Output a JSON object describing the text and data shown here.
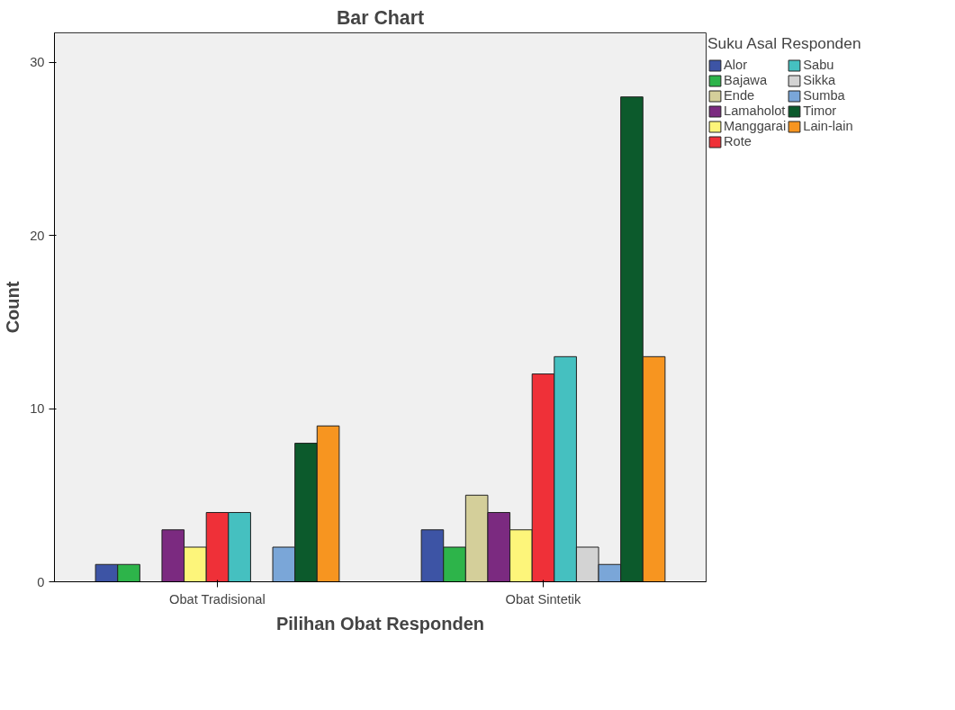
{
  "chart_data": {
    "type": "bar",
    "title": "Bar Chart",
    "xlabel": "Pilihan Obat Responden",
    "ylabel": "Count",
    "legend_title": "Suku Asal Responden",
    "categories": [
      "Obat Tradisional",
      "Obat Sintetik"
    ],
    "series": [
      {
        "name": "Alor",
        "color": "#3d54a5",
        "values": [
          1,
          3
        ]
      },
      {
        "name": "Bajawa",
        "color": "#2db44a",
        "values": [
          1,
          2
        ]
      },
      {
        "name": "Ende",
        "color": "#d4cf9a",
        "values": [
          null,
          5
        ]
      },
      {
        "name": "Lamaholot",
        "color": "#7b2a80",
        "values": [
          3,
          4
        ]
      },
      {
        "name": "Manggarai",
        "color": "#fdf57a",
        "values": [
          2,
          3
        ]
      },
      {
        "name": "Rote",
        "color": "#ef3038",
        "values": [
          4,
          12
        ]
      },
      {
        "name": "Sabu",
        "color": "#45c0c0",
        "values": [
          4,
          13
        ]
      },
      {
        "name": "Sikka",
        "color": "#d3d3d3",
        "values": [
          null,
          2
        ]
      },
      {
        "name": "Sumba",
        "color": "#7aa6d8",
        "values": [
          2,
          1
        ]
      },
      {
        "name": "Timor",
        "color": "#0c5a2c",
        "values": [
          8,
          28
        ]
      },
      {
        "name": "Lain-lain",
        "color": "#f79520",
        "values": [
          9,
          13
        ]
      }
    ],
    "ylim": [
      0,
      31.7
    ],
    "yticks": [
      0,
      10,
      20,
      30
    ],
    "grid": false,
    "legend": "top right"
  }
}
